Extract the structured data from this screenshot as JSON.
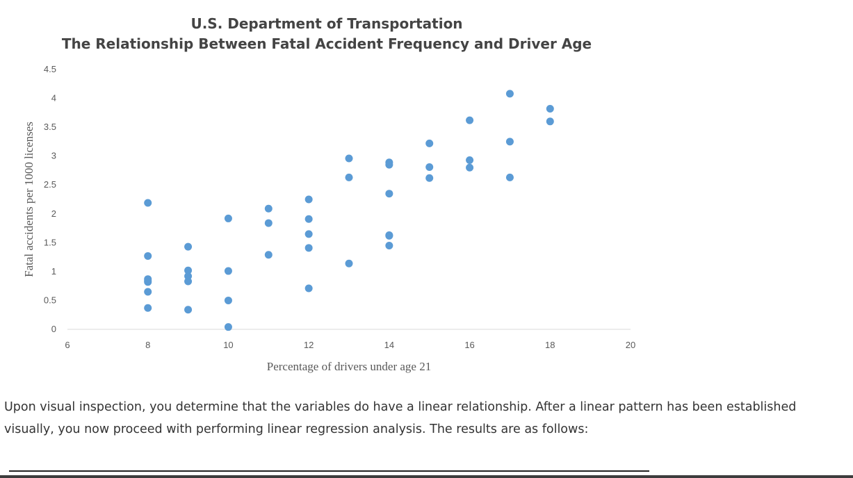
{
  "chart_data": {
    "type": "scatter",
    "title": "U.S. Department of Transportation",
    "subtitle": "The Relationship Between Fatal Accident Frequency and Driver Age",
    "xlabel": "Percentage of drivers under age 21",
    "ylabel": "Fatal accidents per 1000 licenses",
    "xlim": [
      6,
      20
    ],
    "ylim": [
      0,
      4.5
    ],
    "xticks": [
      6,
      8,
      10,
      12,
      14,
      16,
      18,
      20
    ],
    "yticks": [
      0,
      0.5,
      1,
      1.5,
      2,
      2.5,
      3,
      3.5,
      4,
      4.5
    ],
    "ytick_labels": [
      "0",
      "0.5",
      "1",
      "1.5",
      "2",
      "2.5",
      "3",
      "3.5",
      "4",
      "4.5"
    ],
    "grid": false,
    "marker_color": "#5b9bd5",
    "x": [
      8,
      8,
      8,
      8,
      8,
      8,
      8,
      9,
      9,
      9,
      9,
      9,
      10,
      10,
      10,
      10,
      11,
      11,
      11,
      12,
      12,
      12,
      12,
      12,
      13,
      13,
      13,
      14,
      14,
      14,
      14,
      14,
      14,
      15,
      15,
      15,
      16,
      16,
      16,
      17,
      17,
      17,
      18,
      18
    ],
    "y": [
      2.19,
      1.27,
      0.87,
      0.82,
      0.65,
      0.37,
      0.84,
      1.43,
      1.02,
      0.92,
      0.83,
      0.34,
      1.92,
      1.01,
      0.5,
      0.04,
      2.09,
      1.84,
      1.29,
      2.25,
      1.91,
      1.65,
      1.41,
      0.71,
      2.96,
      2.63,
      1.14,
      2.89,
      2.85,
      2.35,
      1.63,
      1.45,
      1.62,
      3.22,
      2.81,
      2.62,
      3.62,
      2.93,
      2.8,
      4.08,
      3.25,
      2.63,
      3.82,
      3.6
    ]
  },
  "body": {
    "paragraph": "Upon visual inspection, you determine that the variables do have a linear relationship. After a linear pattern has been established visually, you now proceed with performing linear regression analysis. The results are as follows:"
  }
}
